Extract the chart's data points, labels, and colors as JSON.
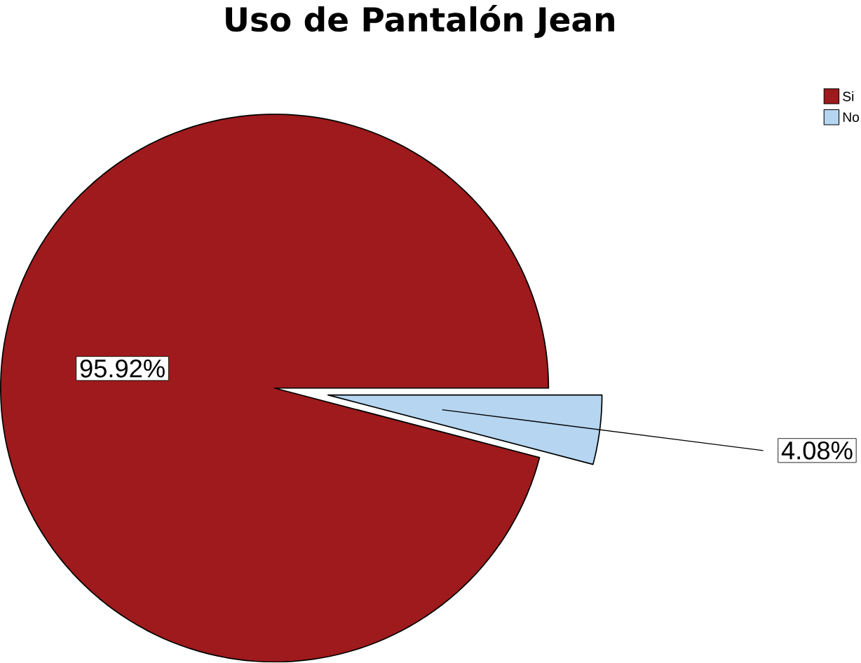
{
  "chart_data": {
    "type": "pie",
    "title": "Uso de Pantalón Jean",
    "categories": [
      "Si",
      "No"
    ],
    "values": [
      95.92,
      4.08
    ],
    "colors": [
      "#9e1a1c",
      "#b5d5f0"
    ],
    "value_labels": [
      "95.92%",
      "4.08%"
    ],
    "legend": "top right"
  }
}
